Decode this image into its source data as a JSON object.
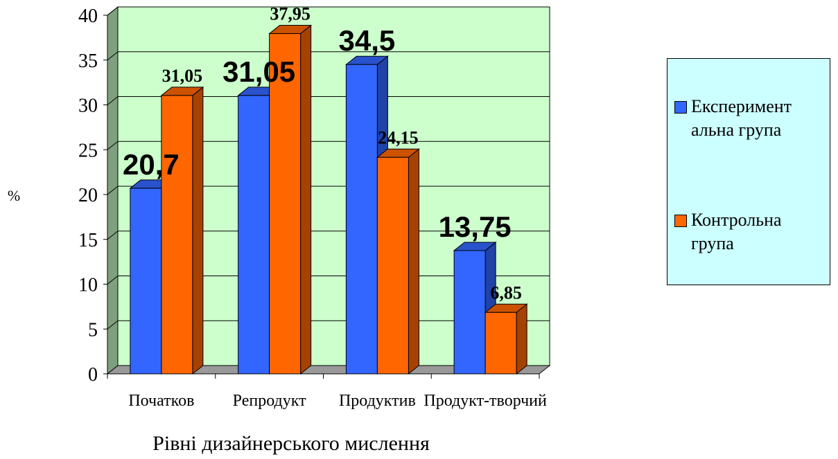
{
  "chart_data": {
    "type": "bar",
    "categories": [
      "Початков",
      "Репродукт",
      "Продуктив",
      "Продукт-творчий"
    ],
    "series": [
      {
        "name": "Експериментальна група",
        "values": [
          20.7,
          31.05,
          34.5,
          13.75
        ],
        "labels": [
          "20,7",
          "31,05",
          "34,5",
          "13,75"
        ],
        "color": "#3366ff"
      },
      {
        "name": "Контрольна група",
        "values": [
          31.05,
          37.95,
          24.15,
          6.85
        ],
        "labels": [
          "31,05",
          "37,95",
          "24,15",
          "6,85"
        ],
        "color": "#ff6600"
      }
    ],
    "xlabel": "Рівні  дизайнерського мислення",
    "ylabel": "%",
    "ylim": [
      0,
      40
    ],
    "yticks": [
      "0",
      "5",
      "10",
      "15",
      "20",
      "25",
      "30",
      "35",
      "40"
    ],
    "grid": true,
    "legend_position": "right",
    "plot_background": "#ccffcc"
  },
  "legend": {
    "items": [
      {
        "label": "Експеримент альна група",
        "color": "#3366ff"
      },
      {
        "label": "Контрольна група",
        "color": "#ff6600"
      }
    ]
  }
}
